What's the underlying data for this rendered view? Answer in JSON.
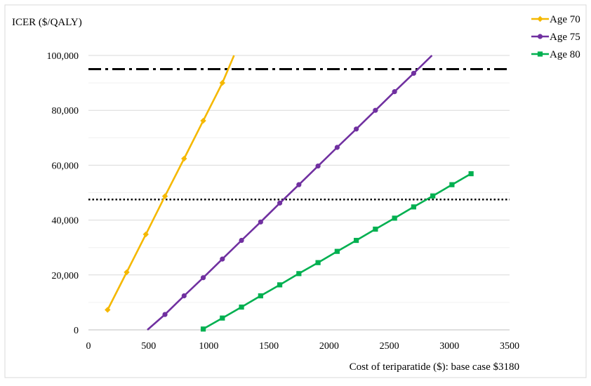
{
  "chart_data": {
    "type": "line",
    "ylabel": "ICER ($/QALY)",
    "xlabel": "Cost of teriparatide ($): base case $3180",
    "xlim": [
      0,
      3500
    ],
    "ylim": [
      0,
      100000
    ],
    "x_ticks": [
      0,
      500,
      1000,
      1500,
      2000,
      2500,
      3000,
      3500
    ],
    "x_tick_labels": [
      "0",
      "500",
      "1000",
      "1500",
      "2000",
      "2500",
      "3000",
      "3500"
    ],
    "y_ticks": [
      0,
      20000,
      40000,
      60000,
      80000,
      100000
    ],
    "y_tick_labels": [
      "0",
      "20,000",
      "40,000",
      "60,000",
      "80,000",
      "100,000"
    ],
    "grid": "horizontal",
    "legend_position": "top-right",
    "reference_lines": [
      {
        "y": 95000,
        "style": "dash-dot",
        "color": "#000000"
      },
      {
        "y": 47500,
        "style": "dotted",
        "color": "#000000"
      }
    ],
    "series": [
      {
        "name": "Age 70",
        "color": "#F5B800",
        "marker": "diamond",
        "x": [
          159,
          318,
          477,
          636,
          795,
          954,
          1113,
          1210
        ],
        "y": [
          7300,
          21000,
          34800,
          48700,
          62400,
          76200,
          90000,
          100000
        ],
        "marked": [
          true,
          true,
          true,
          true,
          true,
          true,
          true,
          false
        ]
      },
      {
        "name": "Age 75",
        "color": "#7030A0",
        "marker": "circle",
        "x": [
          490,
          636,
          795,
          954,
          1113,
          1272,
          1431,
          1590,
          1749,
          1908,
          2067,
          2226,
          2385,
          2544,
          2703,
          2855
        ],
        "y": [
          0,
          5600,
          12400,
          19000,
          25800,
          32600,
          39300,
          46200,
          52900,
          59700,
          66500,
          73200,
          80000,
          86800,
          93500,
          100000
        ],
        "marked": [
          false,
          true,
          true,
          true,
          true,
          true,
          true,
          true,
          true,
          true,
          true,
          true,
          true,
          true,
          true,
          false
        ]
      },
      {
        "name": "Age 80",
        "color": "#00B050",
        "marker": "square",
        "x": [
          954,
          1113,
          1272,
          1431,
          1590,
          1749,
          1908,
          2067,
          2226,
          2385,
          2544,
          2703,
          2862,
          3021,
          3180
        ],
        "y": [
          300,
          4300,
          8300,
          12400,
          16400,
          20500,
          24500,
          28600,
          32600,
          36700,
          40700,
          44800,
          48800,
          52900,
          56900
        ],
        "marked": [
          true,
          true,
          true,
          true,
          true,
          true,
          true,
          true,
          true,
          true,
          true,
          true,
          true,
          true,
          true
        ]
      }
    ]
  }
}
